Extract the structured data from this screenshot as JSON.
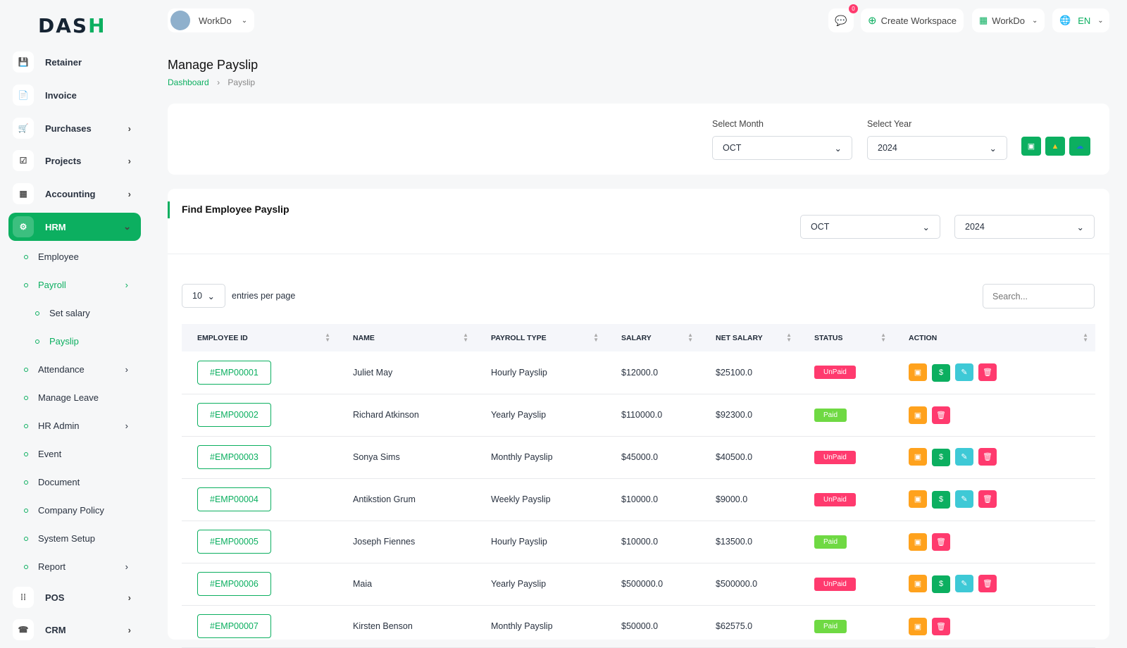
{
  "brand": {
    "logo": "DASH"
  },
  "header": {
    "workspace": "WorkDo",
    "notif_count": "0",
    "create_workspace": "Create Workspace",
    "workdo": "WorkDo",
    "lang": "EN"
  },
  "sidebar": {
    "items": [
      {
        "label": "Retainer",
        "icon": "save-icon"
      },
      {
        "label": "Invoice",
        "icon": "file-icon"
      },
      {
        "label": "Purchases",
        "icon": "cart-icon"
      },
      {
        "label": "Projects",
        "icon": "check-square-icon"
      },
      {
        "label": "Accounting",
        "icon": "grid-icon"
      },
      {
        "label": "HRM",
        "icon": "cog-icon"
      }
    ],
    "sub": [
      {
        "label": "Employee"
      },
      {
        "label": "Payroll"
      },
      {
        "label": "Set salary"
      },
      {
        "label": "Payslip"
      },
      {
        "label": "Attendance"
      },
      {
        "label": "Manage Leave"
      },
      {
        "label": "HR Admin"
      },
      {
        "label": "Event"
      },
      {
        "label": "Document"
      },
      {
        "label": "Company Policy"
      },
      {
        "label": "System Setup"
      },
      {
        "label": "Report"
      }
    ],
    "bottom": [
      {
        "label": "POS"
      },
      {
        "label": "CRM"
      }
    ]
  },
  "page": {
    "title": "Manage Payslip",
    "breadcrumb": [
      "Dashboard",
      "Payslip"
    ]
  },
  "filter": {
    "month_label": "Select Month",
    "month": "OCT",
    "year_label": "Select Year",
    "year": "2024"
  },
  "find": {
    "title": "Find Employee Payslip",
    "month": "OCT",
    "year": "2024"
  },
  "table": {
    "per_page": "10",
    "per_page_label": "entries per page",
    "search_placeholder": "Search...",
    "columns": [
      "EMPLOYEE ID",
      "NAME",
      "PAYROLL TYPE",
      "SALARY",
      "NET SALARY",
      "STATUS",
      "ACTION"
    ],
    "rows": [
      {
        "id": "#EMP00001",
        "name": "Juliet May",
        "type": "Hourly Payslip",
        "salary": "$12000.0",
        "net": "$25100.0",
        "status": "UnPaid"
      },
      {
        "id": "#EMP00002",
        "name": "Richard Atkinson",
        "type": "Yearly Payslip",
        "salary": "$110000.0",
        "net": "$92300.0",
        "status": "Paid"
      },
      {
        "id": "#EMP00003",
        "name": "Sonya Sims",
        "type": "Monthly Payslip",
        "salary": "$45000.0",
        "net": "$40500.0",
        "status": "UnPaid"
      },
      {
        "id": "#EMP00004",
        "name": "Antikstion Grum",
        "type": "Weekly Payslip",
        "salary": "$10000.0",
        "net": "$9000.0",
        "status": "UnPaid"
      },
      {
        "id": "#EMP00005",
        "name": "Joseph Fiennes",
        "type": "Hourly Payslip",
        "salary": "$10000.0",
        "net": "$13500.0",
        "status": "Paid"
      },
      {
        "id": "#EMP00006",
        "name": "Maia",
        "type": "Yearly Payslip",
        "salary": "$500000.0",
        "net": "$500000.0",
        "status": "UnPaid"
      },
      {
        "id": "#EMP00007",
        "name": "Kirsten Benson",
        "type": "Monthly Payslip",
        "salary": "$50000.0",
        "net": "$62575.0",
        "status": "Paid"
      }
    ]
  },
  "colors": {
    "accent": "#0caf60",
    "unpaid": "#ff3a6e",
    "paid": "#6fd943",
    "orange": "#ffa21d",
    "cyan": "#3ec9d6"
  }
}
